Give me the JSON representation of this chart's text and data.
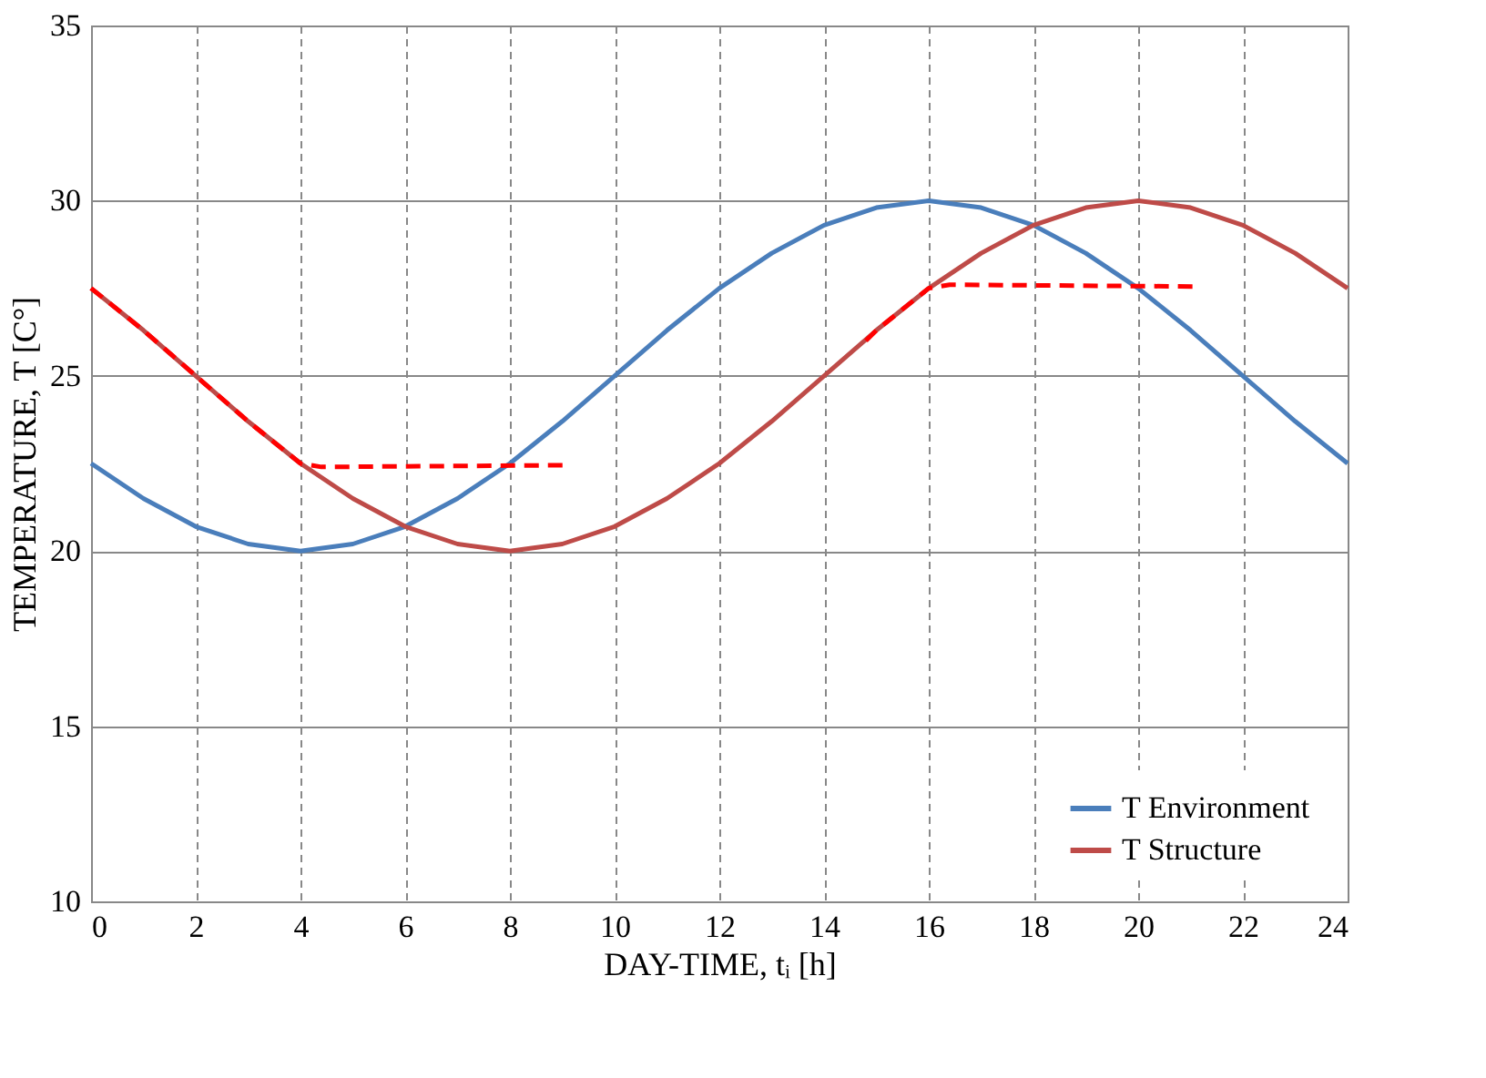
{
  "chart_data": {
    "type": "line",
    "xlabel": "DAY-TIME,  tᵢ [h]",
    "ylabel": "TEMPERATURE,  T [C°]",
    "xlim": [
      0,
      24
    ],
    "xticks": [
      0,
      2,
      4,
      6,
      8,
      10,
      12,
      14,
      16,
      18,
      20,
      22,
      24
    ],
    "ylim": [
      10,
      35
    ],
    "yticks": [
      10,
      15,
      20,
      25,
      30,
      35
    ],
    "grid": true,
    "legend": "bottom right",
    "marker": "none",
    "x": [
      0,
      1,
      2,
      3,
      4,
      5,
      6,
      7,
      8,
      9,
      10,
      11,
      12,
      13,
      14,
      15,
      16,
      17,
      18,
      19,
      20,
      21,
      22,
      23,
      24
    ],
    "series": [
      {
        "name": "T Environment",
        "color": "#4a7ebb",
        "line_style": "solid",
        "values": [
          22.5,
          21.5,
          20.7,
          20.2,
          20.0,
          20.2,
          20.7,
          21.5,
          22.5,
          23.7,
          25.0,
          26.3,
          27.5,
          28.5,
          29.3,
          29.8,
          30.0,
          29.8,
          29.3,
          28.5,
          27.5,
          26.3,
          25.0,
          23.7,
          22.5
        ]
      },
      {
        "name": "T Structure",
        "color": "#be4b48",
        "line_style": "solid",
        "values": [
          27.5,
          26.3,
          25.0,
          23.7,
          22.5,
          21.5,
          20.7,
          20.2,
          20.0,
          20.2,
          20.7,
          21.5,
          22.5,
          23.7,
          25.0,
          26.3,
          27.5,
          28.5,
          29.3,
          29.8,
          30.0,
          29.8,
          29.3,
          28.5,
          27.5
        ]
      },
      {
        "color": "#ff0000",
        "line_style": "dashed",
        "x": [
          0,
          1,
          2,
          3,
          4,
          4.4,
          9.1
        ],
        "values": [
          27.5,
          26.3,
          25.0,
          23.7,
          22.5,
          22.4,
          22.45
        ]
      },
      {
        "color": "#ff0000",
        "line_style": "dashed",
        "x": [
          14.8,
          15,
          16,
          16.4,
          21.1
        ],
        "values": [
          26.0,
          26.3,
          27.5,
          27.6,
          27.55
        ]
      }
    ]
  }
}
